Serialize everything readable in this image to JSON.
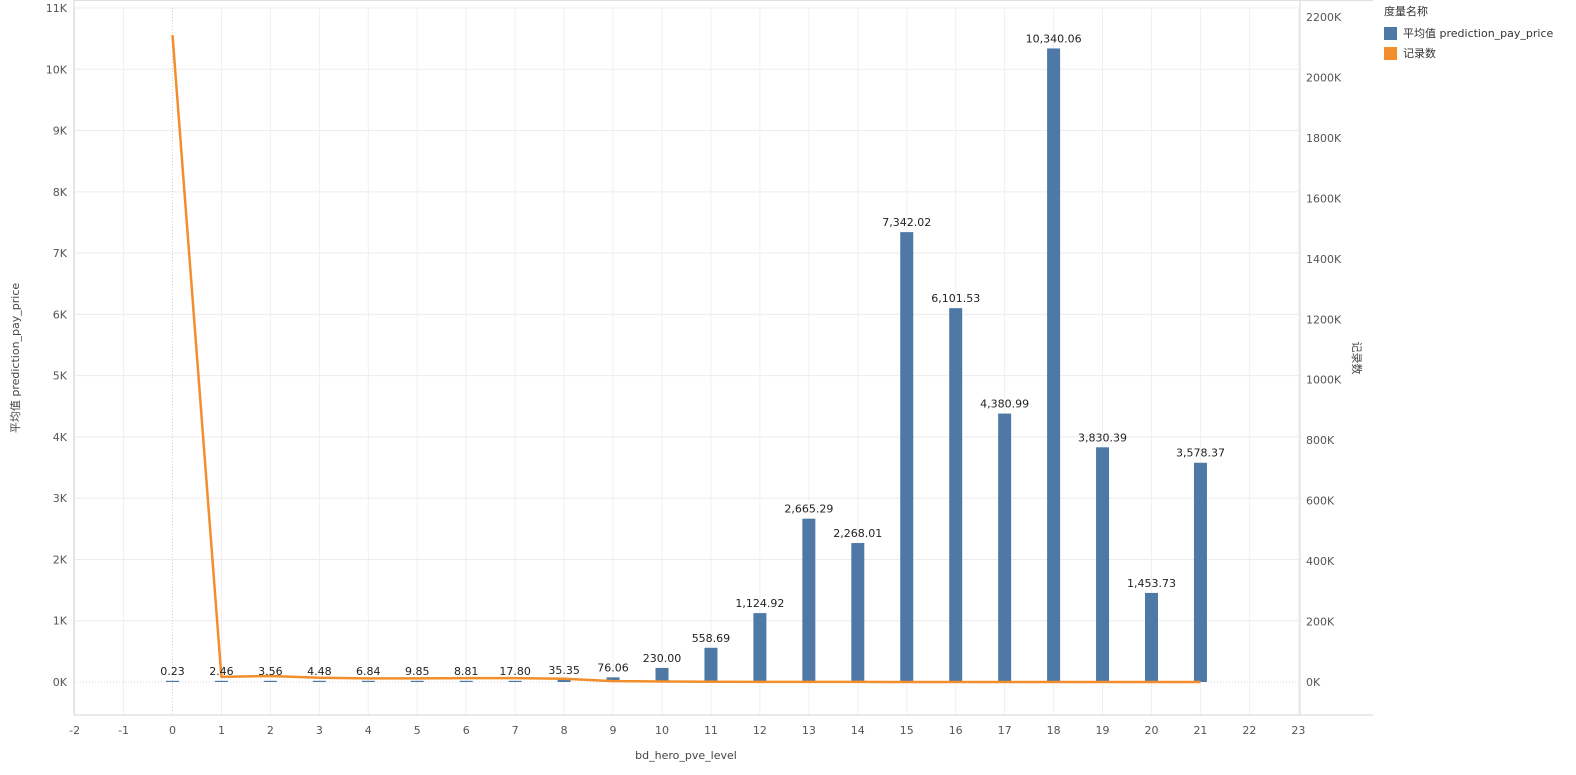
{
  "legend": {
    "title": "度量名称",
    "items": [
      {
        "label": "平均值 prediction_pay_price",
        "color": "#4e79a7"
      },
      {
        "label": "记录数",
        "color": "#f28e2b"
      }
    ]
  },
  "chart_data": {
    "type": "bar",
    "xlabel": "bd_hero_pve_level",
    "ylabel": "平均值 prediction_pay_price",
    "y2label": "记录数",
    "xlim": [
      -2,
      23
    ],
    "ylim": [
      0,
      11000
    ],
    "y2lim": [
      0,
      2200000
    ],
    "x_ticks": [
      -2,
      -1,
      0,
      1,
      2,
      3,
      4,
      5,
      6,
      7,
      8,
      9,
      10,
      11,
      12,
      13,
      14,
      15,
      16,
      17,
      18,
      19,
      20,
      21,
      22,
      23
    ],
    "y_ticks": [
      "0K",
      "1K",
      "2K",
      "3K",
      "4K",
      "5K",
      "6K",
      "7K",
      "8K",
      "9K",
      "10K",
      "11K"
    ],
    "y2_ticks": [
      "0K",
      "200K",
      "400K",
      "600K",
      "800K",
      "1000K",
      "1200K",
      "1400K",
      "1600K",
      "1800K",
      "2000K",
      "2200K"
    ],
    "x": [
      0,
      1,
      2,
      3,
      4,
      5,
      6,
      7,
      8,
      9,
      10,
      11,
      12,
      13,
      14,
      15,
      16,
      17,
      18,
      19,
      20,
      21
    ],
    "series": [
      {
        "name": "平均值 prediction_pay_price",
        "type": "bar",
        "axis": "left",
        "color": "#4e79a7",
        "values": [
          0.23,
          2.46,
          3.56,
          4.48,
          6.84,
          9.85,
          8.81,
          17.8,
          35.35,
          76.06,
          230.0,
          558.69,
          1124.92,
          2665.29,
          2268.01,
          7342.02,
          6101.53,
          4380.99,
          10340.06,
          3830.39,
          1453.73,
          3578.37
        ],
        "labels": [
          "0.23",
          "2.46",
          "3.56",
          "4.48",
          "6.84",
          "9.85",
          "8.81",
          "17.80",
          "35.35",
          "76.06",
          "230.00",
          "558.69",
          "1,124.92",
          "2,665.29",
          "2,268.01",
          "7,342.02",
          "6,101.53",
          "4,380.99",
          "10,340.06",
          "3,830.39",
          "1,453.73",
          "3,578.37"
        ]
      },
      {
        "name": "记录数",
        "type": "line",
        "axis": "right",
        "color": "#f28e2b",
        "values": [
          2140000,
          17000,
          20000,
          14000,
          12000,
          12000,
          13000,
          13000,
          11000,
          3000,
          1500,
          700,
          400,
          300,
          200,
          150,
          100,
          80,
          50,
          40,
          30,
          20
        ]
      }
    ],
    "grid": true,
    "legend_position": "top-right"
  }
}
